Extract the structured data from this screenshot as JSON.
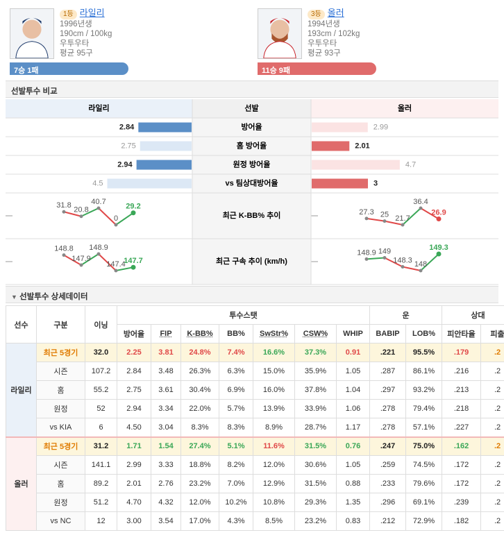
{
  "pitchers": [
    {
      "rank": "1등",
      "name": "라일리",
      "born": "1996년생",
      "body": "190cm / 100kg",
      "hand": "우투우타",
      "pitches": "평균 95구",
      "record": "7승 1패",
      "color": "#5b8fc7"
    },
    {
      "rank": "3등",
      "name": "올러",
      "born": "1994년생",
      "body": "193cm / 102kg",
      "hand": "우투우타",
      "pitches": "평균 93구",
      "record": "11승 9패",
      "color": "#e06b6b"
    }
  ],
  "compare": {
    "title": "선발투수 비교",
    "header": [
      "라일리",
      "선발",
      "올러"
    ],
    "rows": [
      {
        "label": "방어율",
        "left": 2.84,
        "right": 2.99
      },
      {
        "label": "홈 방어율",
        "left": 2.75,
        "right": 2.01
      },
      {
        "label": "원정 방어율",
        "left": 2.94,
        "right": 4.7
      },
      {
        "label": "vs 팀상대방어율",
        "left": 4.5,
        "right": 3
      }
    ]
  },
  "trends": [
    {
      "label": "최근 K-BB% 추이",
      "left": [
        31.8,
        20.8,
        40.7,
        0,
        29.2
      ],
      "right": [
        27.3,
        25,
        21.7,
        36.4,
        26.9
      ]
    },
    {
      "label": "최근 구속 추이 (km/h)",
      "left": [
        148.8,
        147.9,
        148.9,
        147.4,
        147.7
      ],
      "right": [
        148.9,
        149,
        148.3,
        148,
        149.3
      ]
    }
  ],
  "detail": {
    "title": "선발투수 상세데이터",
    "group_headers": [
      "선수",
      "구분",
      "이닝",
      "투수스탯",
      "운",
      "상대"
    ],
    "columns": [
      "방어율",
      "FIP",
      "K-BB%",
      "BB%",
      "SwStr%",
      "CSW%",
      "WHIP",
      "BABIP",
      "LOB%",
      "피안타율",
      "피출"
    ],
    "players": [
      {
        "name": "라일리",
        "recent_colors": [
          "#222",
          "#e04848",
          "#e04848",
          "#e04848",
          "#e04848",
          "#3aa757",
          "#3aa757",
          "#e04848",
          "#222",
          "#222",
          "#e04848",
          "#e07b00"
        ],
        "rows": [
          {
            "split": "최근 5경기",
            "cells": [
              "32.0",
              "2.25",
              "3.81",
              "24.8%",
              "7.4%",
              "16.6%",
              "37.3%",
              "0.91",
              ".221",
              "95.5%",
              ".179",
              ".2"
            ]
          },
          {
            "split": "시즌",
            "cells": [
              "107.2",
              "2.84",
              "3.48",
              "26.3%",
              "6.3%",
              "15.0%",
              "35.9%",
              "1.05",
              ".287",
              "86.1%",
              ".216",
              ".2"
            ]
          },
          {
            "split": "홈",
            "cells": [
              "55.2",
              "2.75",
              "3.61",
              "30.4%",
              "6.9%",
              "16.0%",
              "37.8%",
              "1.04",
              ".297",
              "93.2%",
              ".213",
              ".2"
            ]
          },
          {
            "split": "원정",
            "cells": [
              "52",
              "2.94",
              "3.34",
              "22.0%",
              "5.7%",
              "13.9%",
              "33.9%",
              "1.06",
              ".278",
              "79.4%",
              ".218",
              ".2"
            ]
          },
          {
            "split": "vs KIA",
            "cells": [
              "6",
              "4.50",
              "3.04",
              "8.3%",
              "8.3%",
              "8.9%",
              "28.7%",
              "1.17",
              ".278",
              "57.1%",
              ".227",
              ".2"
            ]
          }
        ]
      },
      {
        "name": "올러",
        "recent_colors": [
          "#222",
          "#3aa757",
          "#3aa757",
          "#3aa757",
          "#3aa757",
          "#e04848",
          "#3aa757",
          "#3aa757",
          "#222",
          "#222",
          "#3aa757",
          "#e07b00"
        ],
        "rows": [
          {
            "split": "최근 5경기",
            "cells": [
              "31.2",
              "1.71",
              "1.54",
              "27.4%",
              "5.1%",
              "11.6%",
              "31.5%",
              "0.76",
              ".247",
              "75.0%",
              ".162",
              ".2"
            ]
          },
          {
            "split": "시즌",
            "cells": [
              "141.1",
              "2.99",
              "3.33",
              "18.8%",
              "8.2%",
              "12.0%",
              "30.6%",
              "1.05",
              ".259",
              "74.5%",
              ".172",
              ".2"
            ]
          },
          {
            "split": "홈",
            "cells": [
              "89.2",
              "2.01",
              "2.76",
              "23.2%",
              "7.0%",
              "12.9%",
              "31.5%",
              "0.88",
              ".233",
              "79.6%",
              ".172",
              ".2"
            ]
          },
          {
            "split": "원정",
            "cells": [
              "51.2",
              "4.70",
              "4.32",
              "12.0%",
              "10.2%",
              "10.8%",
              "29.3%",
              "1.35",
              ".296",
              "69.1%",
              ".239",
              ".2"
            ]
          },
          {
            "split": "vs NC",
            "cells": [
              "12",
              "3.00",
              "3.54",
              "17.0%",
              "4.3%",
              "8.5%",
              "23.2%",
              "0.83",
              ".212",
              "72.9%",
              ".182",
              ".2"
            ]
          }
        ]
      }
    ]
  }
}
